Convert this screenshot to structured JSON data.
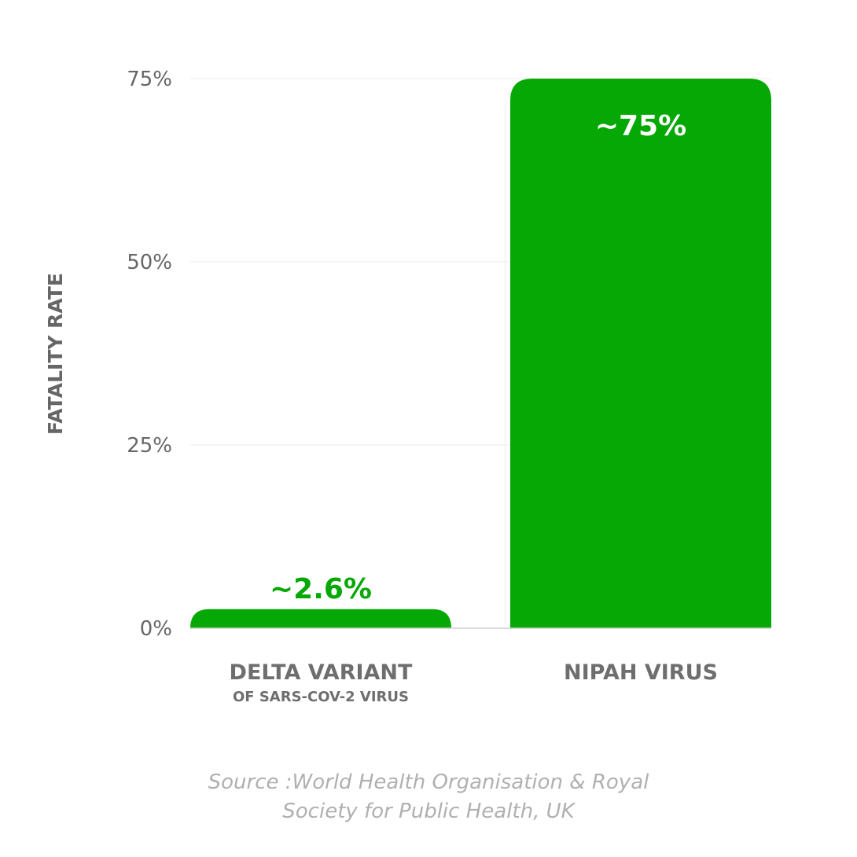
{
  "chart_data": {
    "type": "bar",
    "categories": [
      "DELTA VARIANT",
      "NIPAH VIRUS"
    ],
    "category_sublabels": [
      "OF SARS-COV-2 VIRUS",
      ""
    ],
    "values": [
      2.6,
      75
    ],
    "data_labels": [
      "~2.6%",
      "~75%"
    ],
    "ylabel": "FATALITY RATE",
    "ylim": [
      0,
      75
    ],
    "yticks": [
      0,
      25,
      50,
      75
    ],
    "ytick_labels": [
      "0%",
      "25%",
      "50%",
      "75%"
    ],
    "grid": true,
    "bar_color": "#05a805",
    "inside_label_color": "#ffffff",
    "outside_label_color": "#05a805"
  },
  "source": {
    "line1": "Source :World Health Organisation & Royal",
    "line2": "Society for Public Health, UK"
  }
}
